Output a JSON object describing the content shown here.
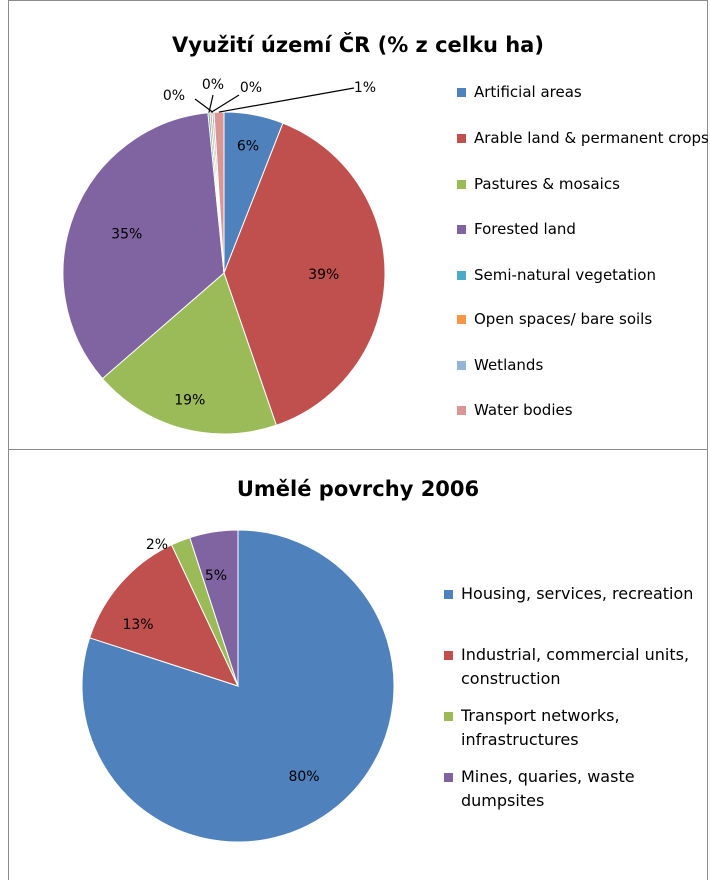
{
  "chart_data": [
    {
      "type": "pie",
      "title": "Využití území ČR (% z celku ha)",
      "categories": [
        "Artificial areas",
        "Arable land & permanent crops",
        "Pastures & mosaics",
        "Forested land",
        "Semi-natural vegetation",
        "Open spaces/ bare soils",
        "Wetlands",
        "Water bodies"
      ],
      "values": [
        6,
        39,
        19,
        35,
        0,
        0,
        0,
        1
      ],
      "labels": [
        "6%",
        "39%",
        "19%",
        "35%",
        "0%",
        "0%",
        "0%",
        "1%"
      ],
      "colors": [
        "#4f81bd",
        "#c0504d",
        "#9bbb59",
        "#8064a2",
        "#4bacc6",
        "#f79646",
        "#95b3d7",
        "#d99694"
      ],
      "legend": "right"
    },
    {
      "type": "pie",
      "title": "Umělé povrchy 2006",
      "categories": [
        "Housing, services, recreation",
        "Industrial, commercial units, construction",
        "Transport networks, infrastructures",
        "Mines, quaries, waste dumpsites"
      ],
      "values": [
        80,
        13,
        2,
        5
      ],
      "labels": [
        "80%",
        "13%",
        "2%",
        "5%"
      ],
      "colors": [
        "#4f81bd",
        "#c0504d",
        "#9bbb59",
        "#8064a2"
      ],
      "legend": "right"
    }
  ]
}
